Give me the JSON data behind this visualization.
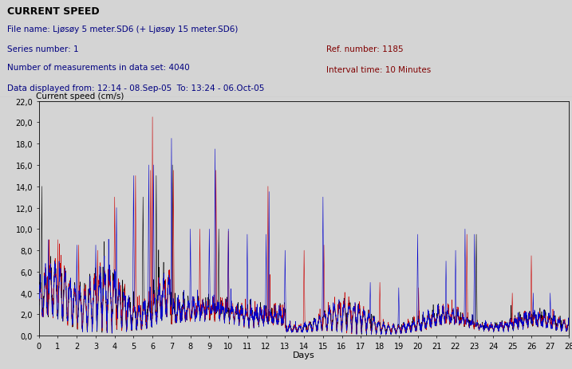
{
  "title": "CURRENT SPEED",
  "line1_label": "File name: Ljøsøy 5 meter.SD6 (+ Ljøsøy 15 meter.SD6)",
  "line2_label": "Series number: 1",
  "line3_label": "Number of measurements in data set: 4040",
  "line4_label": "Data displayed from: 12:14 - 08.Sep-05  To: 13:24 - 06.Oct-05",
  "ref_number": "Ref. number: 1185",
  "interval_time": "Interval time: 10 Minutes",
  "ylabel": "Current speed (cm/s)",
  "xlabel": "Days",
  "xlim": [
    0,
    28
  ],
  "ylim": [
    0,
    22
  ],
  "yticks": [
    0,
    2,
    4,
    6,
    8,
    10,
    12,
    14,
    16,
    18,
    20,
    22
  ],
  "xticks": [
    0,
    1,
    2,
    3,
    4,
    5,
    6,
    7,
    8,
    9,
    10,
    11,
    12,
    13,
    14,
    15,
    16,
    17,
    18,
    19,
    20,
    21,
    22,
    23,
    24,
    25,
    26,
    27,
    28
  ],
  "bg_color": "#d4d4d4",
  "blue_color": "#0000cc",
  "red_color": "#cc0000",
  "black_color": "#000000",
  "n_points": 4040,
  "days": 28,
  "seed": 42
}
